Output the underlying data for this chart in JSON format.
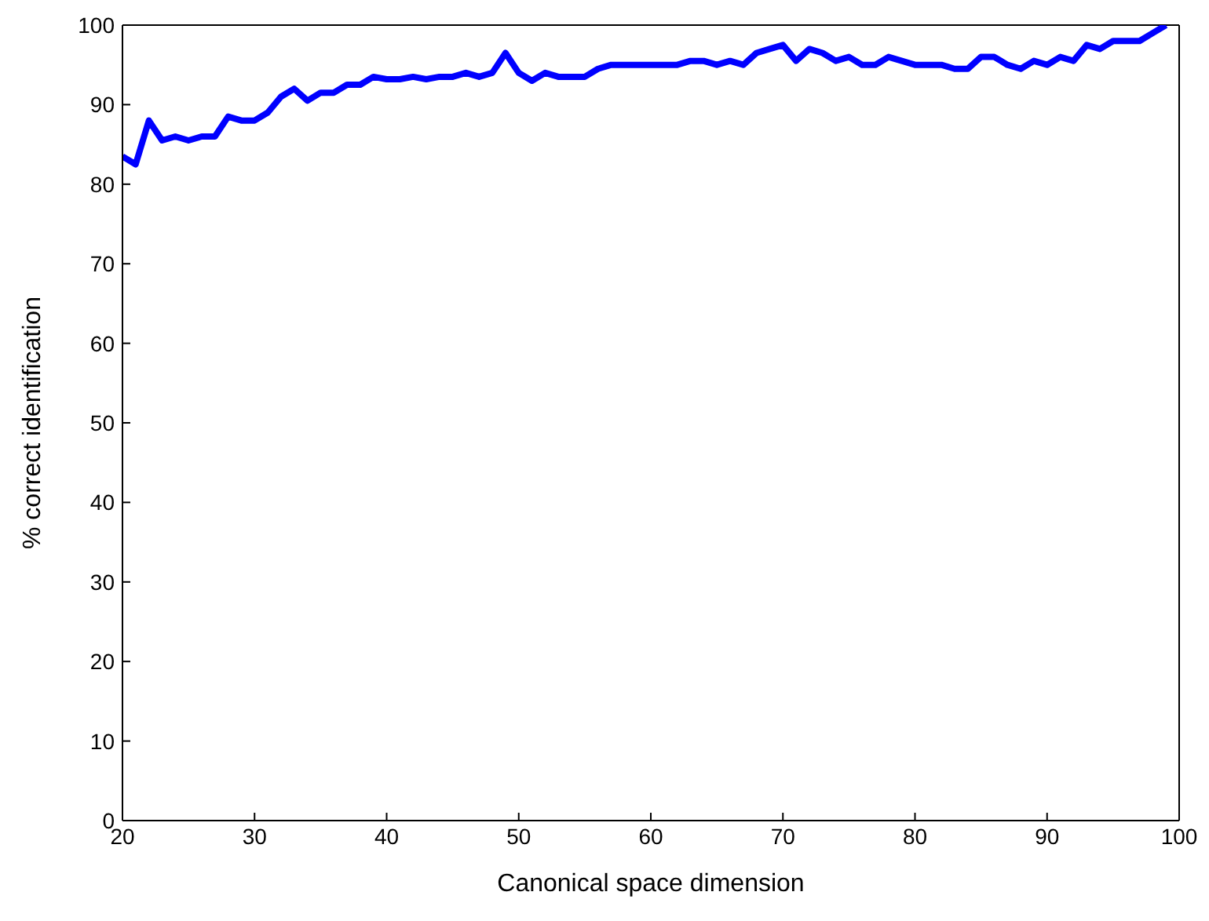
{
  "chart_data": {
    "type": "line",
    "xlabel": "Canonical space dimension",
    "ylabel": "% correct identification",
    "x": [
      20,
      21,
      22,
      23,
      24,
      25,
      26,
      27,
      28,
      29,
      30,
      31,
      32,
      33,
      34,
      35,
      36,
      37,
      38,
      39,
      40,
      41,
      42,
      43,
      44,
      45,
      46,
      47,
      48,
      49,
      50,
      51,
      52,
      53,
      54,
      55,
      56,
      57,
      58,
      59,
      60,
      61,
      62,
      63,
      64,
      65,
      66,
      67,
      68,
      69,
      70,
      71,
      72,
      73,
      74,
      75,
      76,
      77,
      78,
      79,
      80,
      81,
      82,
      83,
      84,
      85,
      86,
      87,
      88,
      89,
      90,
      91,
      92,
      93,
      94,
      95,
      96,
      97,
      98,
      99
    ],
    "series": [
      {
        "color": "#0000ff",
        "values": [
          83.5,
          82.5,
          88,
          85.5,
          86,
          85.5,
          86,
          86,
          88.5,
          88,
          88,
          89,
          91,
          92,
          90.5,
          91.5,
          91.5,
          92.5,
          92.5,
          93.5,
          93.2,
          93.2,
          93.5,
          93.2,
          93.5,
          93.5,
          94,
          93.5,
          94,
          96.5,
          94,
          93,
          94,
          93.5,
          93.5,
          93.5,
          94.5,
          95,
          95,
          95,
          95,
          95,
          95,
          95.5,
          95.5,
          95,
          95.5,
          95,
          96.5,
          97,
          97.5,
          95.5,
          97,
          96.5,
          95.5,
          96,
          95,
          95,
          96,
          95.5,
          95,
          95,
          95,
          94.5,
          94.5,
          96,
          96,
          95,
          94.5,
          95.5,
          95,
          96,
          95.5,
          97.5,
          97,
          98,
          98,
          98,
          99,
          100
        ]
      }
    ],
    "xlim": [
      20,
      100
    ],
    "xticks": [
      20,
      30,
      40,
      50,
      60,
      70,
      80,
      90,
      100
    ],
    "ylim": [
      0,
      100
    ],
    "yticks": [
      0,
      10,
      20,
      30,
      40,
      50,
      60,
      70,
      80,
      90,
      100
    ],
    "marker": "none",
    "line_style": "solid"
  }
}
